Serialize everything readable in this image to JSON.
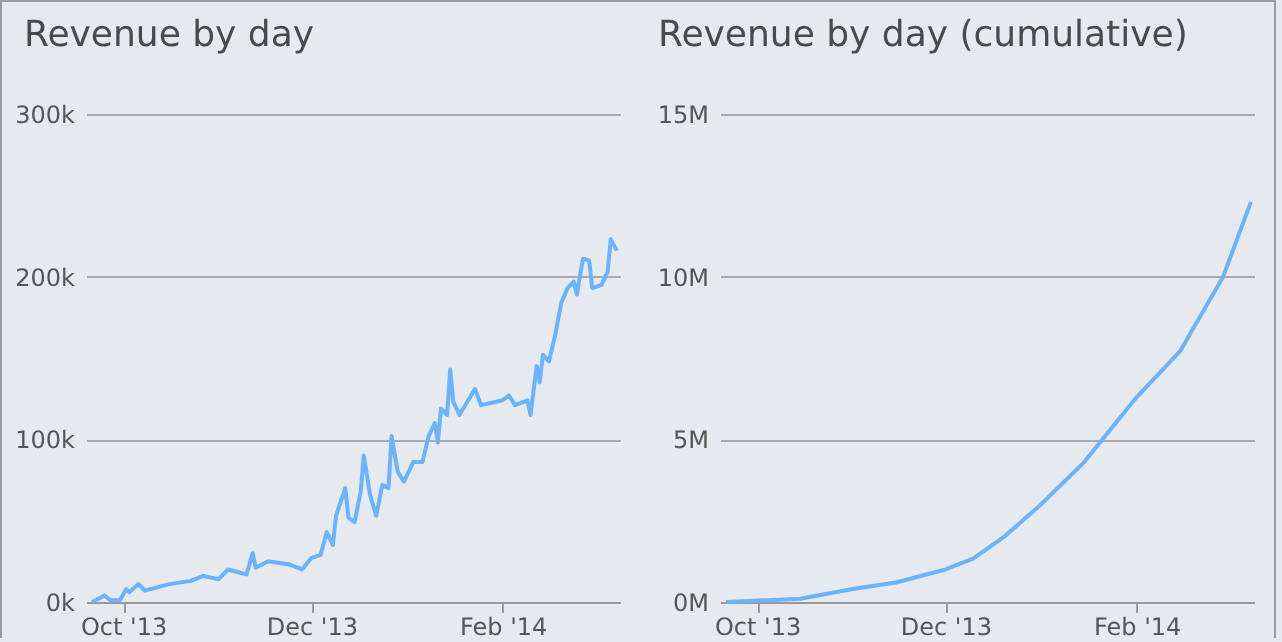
{
  "chart_data": [
    {
      "type": "line",
      "title": "Revenue by day",
      "x": [
        "2013-09-21",
        "2013-09-25",
        "2013-09-27",
        "2013-09-30",
        "2013-10-02",
        "2013-10-03",
        "2013-10-06",
        "2013-10-08",
        "2013-10-12",
        "2013-10-16",
        "2013-10-23",
        "2013-10-27",
        "2013-11-01",
        "2013-11-04",
        "2013-11-08",
        "2013-11-10",
        "2013-11-12",
        "2013-11-13",
        "2013-11-17",
        "2013-11-24",
        "2013-11-28",
        "2013-12-01",
        "2013-12-04",
        "2013-12-06",
        "2013-12-08",
        "2013-12-09",
        "2013-12-12",
        "2013-12-13",
        "2013-12-15",
        "2013-12-17",
        "2013-12-18",
        "2013-12-20",
        "2013-12-22",
        "2013-12-24",
        "2013-12-26",
        "2013-12-27",
        "2013-12-29",
        "2013-12-31",
        "2014-01-03",
        "2014-01-06",
        "2014-01-08",
        "2014-01-10",
        "2014-01-11",
        "2014-01-12",
        "2014-01-14",
        "2014-01-15",
        "2014-01-16",
        "2014-01-18",
        "2014-01-23",
        "2014-01-25",
        "2014-02-01",
        "2014-02-03",
        "2014-02-05",
        "2014-02-09",
        "2014-02-10",
        "2014-02-12",
        "2014-02-13",
        "2014-02-14",
        "2014-02-16",
        "2014-02-18",
        "2014-02-20",
        "2014-02-22",
        "2014-02-24",
        "2014-02-25",
        "2014-02-27",
        "2014-03-01",
        "2014-03-02",
        "2014-03-05",
        "2014-03-07",
        "2014-03-08",
        "2014-03-10"
      ],
      "series": [
        {
          "color": "#6ab4ff",
          "values": [
            0,
            4000,
            1000,
            1000,
            8000,
            6000,
            11000,
            7000,
            9000,
            11000,
            13000,
            16000,
            14000,
            20000,
            18000,
            17000,
            30000,
            21000,
            25000,
            23000,
            20000,
            27000,
            29000,
            43000,
            35000,
            53000,
            70000,
            52000,
            49000,
            68000,
            90000,
            66000,
            53000,
            72000,
            70000,
            102000,
            80000,
            74000,
            86000,
            86000,
            102000,
            110000,
            98000,
            119000,
            115000,
            143000,
            123000,
            115000,
            131000,
            121000,
            124000,
            127000,
            121000,
            124000,
            115000,
            145000,
            135000,
            152000,
            148000,
            164000,
            184000,
            193000,
            197000,
            189000,
            211000,
            210000,
            193000,
            195000,
            203000,
            223000,
            216000
          ]
        }
      ],
      "xlim": [
        "2013-09-19",
        "2014-03-11"
      ],
      "xticks": [
        {
          "value": "2013-10-01",
          "label": "Oct '13"
        },
        {
          "value": "2013-12-01",
          "label": "Dec '13"
        },
        {
          "value": "2014-02-01",
          "label": "Feb '14"
        }
      ],
      "ylim": [
        0,
        300000
      ],
      "yticks": [
        {
          "value": 0,
          "label": "0k"
        },
        {
          "value": 100000,
          "label": "100k"
        },
        {
          "value": 200000,
          "label": "200k"
        },
        {
          "value": 300000,
          "label": "300k"
        }
      ],
      "grid": "y",
      "legend": false
    },
    {
      "type": "line",
      "title": "Revenue by day  (cumulative)",
      "x": [
        "2013-09-21",
        "2013-10-15",
        "2013-11-01",
        "2013-11-15",
        "2013-12-01",
        "2013-12-10",
        "2013-12-20",
        "2014-01-01",
        "2014-01-15",
        "2014-02-01",
        "2014-02-15",
        "2014-03-01",
        "2014-03-10"
      ],
      "series": [
        {
          "color": "#6ab4ff",
          "values": [
            0,
            100000,
            400000,
            600000,
            1000000,
            1330000,
            2000000,
            3000000,
            4300000,
            6300000,
            7700000,
            10000000,
            12300000
          ]
        }
      ],
      "xlim": [
        "2013-09-19",
        "2014-03-11"
      ],
      "xticks": [
        {
          "value": "2013-10-01",
          "label": "Oct '13"
        },
        {
          "value": "2013-12-01",
          "label": "Dec '13"
        },
        {
          "value": "2014-02-01",
          "label": "Feb '14"
        }
      ],
      "ylim": [
        0,
        15000000
      ],
      "yticks": [
        {
          "value": 0,
          "label": "0M"
        },
        {
          "value": 5000000,
          "label": "5M"
        },
        {
          "value": 10000000,
          "label": "10M"
        },
        {
          "value": 15000000,
          "label": "15M"
        }
      ],
      "grid": "y",
      "legend": false
    }
  ]
}
